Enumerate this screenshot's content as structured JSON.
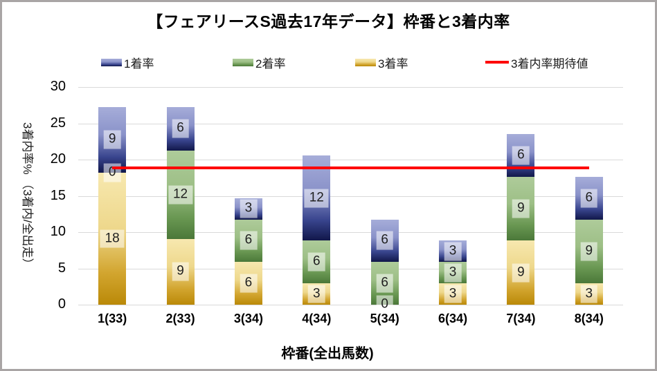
{
  "title": "【フェアリースS過去17年データ】枠番と3着内率",
  "legend": [
    {
      "label": "1着率",
      "type": "box",
      "series_key": "first"
    },
    {
      "label": "2着率",
      "type": "box",
      "series_key": "second"
    },
    {
      "label": "3着率",
      "type": "box",
      "series_key": "third"
    },
    {
      "label": "3着内率期待値",
      "type": "line",
      "series_key": "expectation"
    }
  ],
  "colors": {
    "third_gradient": [
      "#f7e8af",
      "#eed88c",
      "#d2a52f",
      "#ba8908"
    ],
    "second_gradient": [
      "#aecb9a",
      "#9dbf86",
      "#699752",
      "#4b7839"
    ],
    "first_gradient": [
      "#a6add9",
      "#8a92c9",
      "#39458e",
      "#11174a"
    ],
    "expectation_line": "#fe0000",
    "gridline": "#d9d9d9",
    "label_box_bg": "rgba(255,255,255,0.55)"
  },
  "chart_data": {
    "type": "bar",
    "stacked": true,
    "title": "【フェアリースS過去17年データ】枠番と3着内率",
    "xlabel": "枠番(全出馬数)",
    "ylabel": "3着内率% （3着内/全出走）",
    "categories": [
      "1(33)",
      "2(33)",
      "3(34)",
      "4(34)",
      "5(34)",
      "6(34)",
      "7(34)",
      "8(34)"
    ],
    "series": [
      {
        "name": "3着率",
        "color_key": "third_gradient",
        "values": [
          18.18,
          9.09,
          5.88,
          2.94,
          0,
          2.94,
          8.82,
          2.94
        ],
        "labels": [
          "18",
          "9",
          "6",
          "3",
          "0",
          "3",
          "9",
          "3"
        ]
      },
      {
        "name": "2着率",
        "color_key": "second_gradient",
        "values": [
          0,
          12.12,
          5.88,
          5.88,
          5.88,
          2.94,
          8.82,
          8.82
        ],
        "labels": [
          "0",
          "12",
          "6",
          "6",
          "6",
          "3",
          "9",
          "9"
        ]
      },
      {
        "name": "1着率",
        "color_key": "first_gradient",
        "values": [
          9.09,
          6.06,
          2.94,
          11.76,
          5.88,
          2.94,
          5.88,
          5.88
        ],
        "labels": [
          "9",
          "6",
          "3",
          "12",
          "6",
          "3",
          "6",
          "6"
        ]
      }
    ],
    "line_series": {
      "name": "3着内率期待値",
      "value": 18.9
    },
    "ylim": [
      0,
      30
    ],
    "yticks": [
      0,
      5,
      10,
      15,
      20,
      25,
      30
    ],
    "grid": true,
    "legend_position": "top"
  }
}
